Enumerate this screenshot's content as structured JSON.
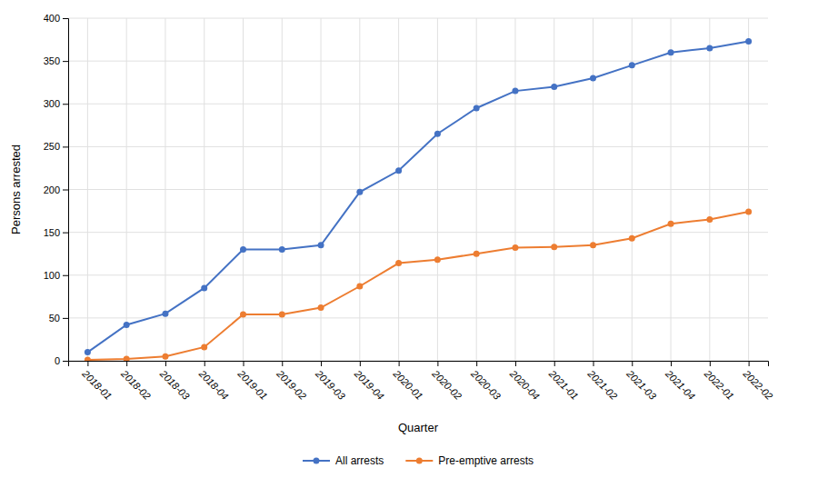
{
  "chart_data": {
    "type": "line",
    "categories": [
      "2018-01",
      "2018-02",
      "2018-03",
      "2018-04",
      "2019-01",
      "2019-02",
      "2019-03",
      "2019-04",
      "2020-01",
      "2020-02",
      "2020-03",
      "2020-04",
      "2021-01",
      "2021-02",
      "2021-03",
      "2021-04",
      "2022-01",
      "2022-02"
    ],
    "series": [
      {
        "name": "All arrests",
        "color": "#4472C4",
        "marker": "circle",
        "values": [
          10,
          42,
          55,
          85,
          130,
          130,
          135,
          197,
          222,
          265,
          295,
          315,
          320,
          330,
          345,
          360,
          365,
          373
        ]
      },
      {
        "name": "Pre-emptive arrests",
        "color": "#ED7D31",
        "marker": "circle",
        "values": [
          1,
          2,
          5,
          16,
          54,
          54,
          62,
          87,
          114,
          118,
          125,
          132,
          133,
          135,
          143,
          160,
          165,
          174
        ]
      }
    ],
    "xlabel": "Quarter",
    "ylabel": "Persons arrested",
    "ylim": [
      0,
      400
    ],
    "yticks": [
      0,
      50,
      100,
      150,
      200,
      250,
      300,
      350,
      400
    ],
    "grid": true,
    "legend": "bottom"
  }
}
